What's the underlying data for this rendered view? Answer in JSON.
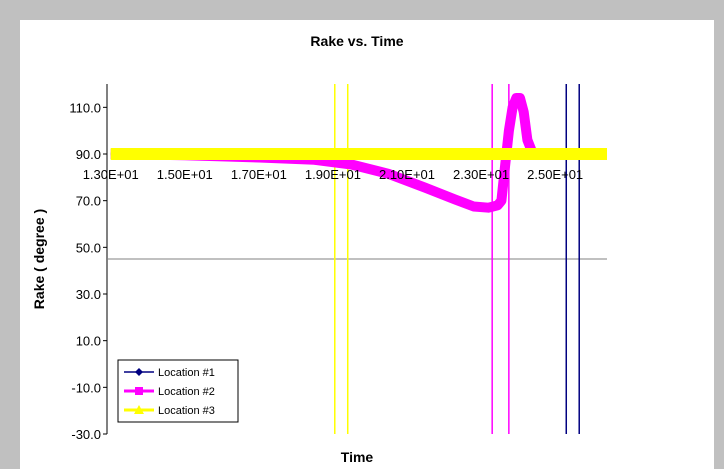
{
  "chart_data": {
    "type": "line",
    "title": "Rake vs. Time",
    "xlabel": "Time",
    "ylabel": "Rake ( degree )",
    "xlim": [
      12.9,
      26.4
    ],
    "ylim": [
      -30,
      120
    ],
    "x_axis_crosses_y": 45,
    "y_ticks": [
      -30,
      -10,
      10,
      30,
      50,
      70,
      90,
      110
    ],
    "y_tick_labels": [
      "-30.0",
      "-10.0",
      "10.0",
      "30.0",
      "50.0",
      "70.0",
      "90.0",
      "110.0"
    ],
    "x_ticks": [
      13,
      15,
      17,
      19,
      21,
      23,
      25
    ],
    "x_tick_labels": [
      "1.30E+01",
      "1.50E+01",
      "1.70E+01",
      "1.90E+01",
      "2.10E+01",
      "2.30E+01",
      "2.50E+01"
    ],
    "grid": false,
    "legend_position": "bottom-left",
    "series": [
      {
        "name": "Location #1",
        "color": "#000080",
        "marker": "diamond",
        "x": [
          13.0,
          18.0,
          24.0,
          26.4
        ],
        "y": [
          90,
          90,
          90,
          90
        ],
        "vlines": [
          25.3,
          25.65
        ]
      },
      {
        "name": "Location #2",
        "color": "#ff00ff",
        "marker": "square",
        "x": [
          13.0,
          15.0,
          17.0,
          18.5,
          19.5,
          20.5,
          21.5,
          22.3,
          22.8,
          23.2,
          23.45,
          23.55,
          23.65,
          23.75,
          23.85,
          23.95,
          24.05,
          24.15,
          24.25,
          24.4,
          24.6,
          26.4
        ],
        "y": [
          90,
          89.5,
          88.5,
          87.5,
          85.5,
          81.5,
          75.5,
          70.5,
          67.5,
          67,
          68,
          70,
          85,
          100,
          110,
          114,
          114,
          108,
          96,
          90,
          90,
          90
        ],
        "vlines": [
          23.3,
          23.75
        ]
      },
      {
        "name": "Location #3",
        "color": "#ffff00",
        "marker": "triangle",
        "x": [
          13.0,
          16.0,
          19.0,
          22.0,
          24.0,
          26.4
        ],
        "y": [
          90,
          90,
          90,
          90,
          90,
          90
        ],
        "vlines": [
          19.05,
          19.4
        ]
      }
    ]
  }
}
